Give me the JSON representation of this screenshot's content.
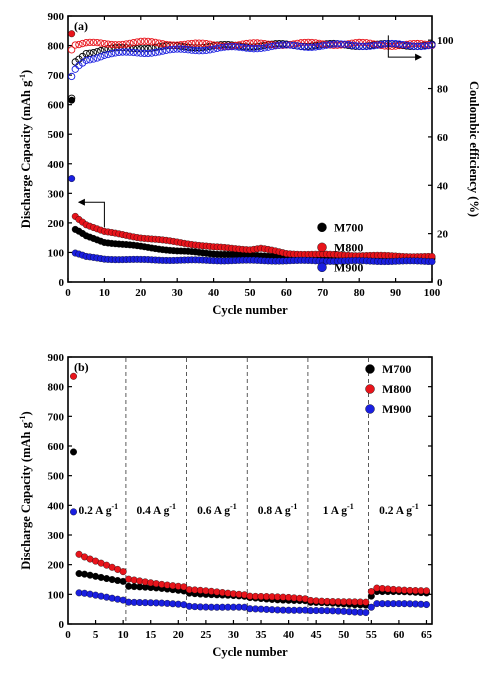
{
  "chart_data": [
    {
      "panel": "(a)",
      "type": "scatter",
      "xlabel": "Cycle number",
      "ylabel": "Discharge Capacity (mAh g",
      "ylabel_sup": "-1",
      "ylabel_end": ")",
      "y2label": "Coulombic efficiency (%)",
      "xlim": [
        0,
        100
      ],
      "ylim": [
        0,
        900
      ],
      "y2lim": [
        0,
        110
      ],
      "xticks": [
        "0",
        "10",
        "20",
        "30",
        "40",
        "50",
        "60",
        "70",
        "80",
        "90",
        "100"
      ],
      "yticks": [
        "0",
        "100",
        "200",
        "300",
        "400",
        "500",
        "600",
        "700",
        "800",
        "900"
      ],
      "y2ticks": [
        "0",
        "20",
        "40",
        "60",
        "80",
        "100"
      ],
      "legend": {
        "placement": "middle-right",
        "entries": [
          "M700",
          "M800",
          "M900"
        ]
      },
      "colors": {
        "M700": "#000000",
        "M800": "#e8141b",
        "M900": "#1a1fe0"
      },
      "arrows": [
        {
          "from": [
            10,
            185
          ],
          "to": [
            3,
            270
          ],
          "points_to_axis": "left"
        },
        {
          "from": [
            88,
            102
          ],
          "to": [
            97,
            93
          ],
          "points_to_axis": "right"
        }
      ],
      "series": [
        {
          "name": "M700",
          "axis": "capacity",
          "first_cycle": 615,
          "anchors": [
            [
              1,
              615
            ],
            [
              2,
              178
            ],
            [
              5,
              155
            ],
            [
              10,
              135
            ],
            [
              20,
              120
            ],
            [
              30,
              105
            ],
            [
              40,
              96
            ],
            [
              50,
              90
            ],
            [
              60,
              87
            ],
            [
              70,
              85
            ],
            [
              80,
              83
            ],
            [
              90,
              82
            ],
            [
              100,
              81
            ]
          ]
        },
        {
          "name": "M800",
          "axis": "capacity",
          "first_cycle": 840,
          "anchors": [
            [
              1,
              840
            ],
            [
              2,
              222
            ],
            [
              5,
              195
            ],
            [
              10,
              170
            ],
            [
              20,
              150
            ],
            [
              30,
              135
            ],
            [
              40,
              118
            ],
            [
              50,
              110
            ],
            [
              53,
              114
            ],
            [
              60,
              96
            ],
            [
              70,
              93
            ],
            [
              80,
              90
            ],
            [
              90,
              88
            ],
            [
              100,
              85
            ]
          ]
        },
        {
          "name": "M900",
          "axis": "capacity",
          "first_cycle": 350,
          "anchors": [
            [
              1,
              350
            ],
            [
              2,
              98
            ],
            [
              5,
              85
            ],
            [
              10,
              78
            ],
            [
              20,
              75
            ],
            [
              40,
              73
            ],
            [
              60,
              72
            ],
            [
              80,
              71
            ],
            [
              100,
              70
            ]
          ]
        },
        {
          "name": "M700",
          "axis": "efficiency",
          "anchors": [
            [
              1,
              76
            ],
            [
              2,
              91
            ],
            [
              5,
              95
            ],
            [
              10,
              96
            ],
            [
              20,
              97
            ],
            [
              40,
              97.5
            ],
            [
              60,
              98
            ],
            [
              80,
              98
            ],
            [
              100,
              98
            ]
          ]
        },
        {
          "name": "M800",
          "axis": "efficiency",
          "anchors": [
            [
              1,
              96
            ],
            [
              2,
              98
            ],
            [
              5,
              98.5
            ],
            [
              10,
              98.5
            ],
            [
              20,
              99
            ],
            [
              40,
              98
            ],
            [
              60,
              98.5
            ],
            [
              80,
              98.5
            ],
            [
              90,
              98
            ],
            [
              100,
              98
            ]
          ]
        },
        {
          "name": "M900",
          "axis": "efficiency",
          "anchors": [
            [
              1,
              85
            ],
            [
              2,
              88
            ],
            [
              5,
              92
            ],
            [
              10,
              94
            ],
            [
              20,
              95
            ],
            [
              40,
              96.5
            ],
            [
              60,
              97.5
            ],
            [
              80,
              98
            ],
            [
              100,
              98
            ]
          ]
        }
      ]
    },
    {
      "panel": "(b)",
      "type": "scatter",
      "xlabel": "Cycle number",
      "ylabel": "Discharge Capacity (mAh g",
      "ylabel_sup": "-1",
      "ylabel_end": ")",
      "xlim": [
        0,
        66
      ],
      "ylim": [
        0,
        900
      ],
      "xticks": [
        "0",
        "5",
        "10",
        "15",
        "20",
        "25",
        "30",
        "35",
        "40",
        "45",
        "50",
        "55",
        "60",
        "65"
      ],
      "yticks": [
        "0",
        "100",
        "200",
        "300",
        "400",
        "500",
        "600",
        "700",
        "800",
        "900"
      ],
      "legend": {
        "placement": "top-right",
        "entries": [
          "M700",
          "M800",
          "M900"
        ]
      },
      "colors": {
        "M700": "#000000",
        "M800": "#e8141b",
        "M900": "#1a1fe0"
      },
      "dividers": [
        10.5,
        21.5,
        32.5,
        43.5,
        54.5
      ],
      "rate_labels": [
        {
          "base": "0.2 A g",
          "sup": "-1",
          "x": 5.5
        },
        {
          "base": "0.4 A g",
          "sup": "-1",
          "x": 16
        },
        {
          "base": "0.6 A g",
          "sup": "-1",
          "x": 27
        },
        {
          "base": "0.8 A g",
          "sup": "-1",
          "x": 38
        },
        {
          "base": "1 A g",
          "sup": "-1",
          "x": 49
        },
        {
          "base": "0.2 A g",
          "sup": "-1",
          "x": 60
        }
      ],
      "series": [
        {
          "name": "M700",
          "anchors": [
            [
              1,
              580
            ],
            [
              2,
              170
            ],
            [
              10,
              145
            ],
            [
              11,
              128
            ],
            [
              21,
              112
            ],
            [
              22,
              105
            ],
            [
              32,
              92
            ],
            [
              33,
              88
            ],
            [
              43,
              78
            ],
            [
              44,
              72
            ],
            [
              54,
              65
            ],
            [
              55,
              95
            ],
            [
              56,
              110
            ],
            [
              65,
              105
            ]
          ]
        },
        {
          "name": "M800",
          "anchors": [
            [
              1,
              835
            ],
            [
              2,
              235
            ],
            [
              10,
              175
            ],
            [
              11,
              150
            ],
            [
              21,
              125
            ],
            [
              22,
              115
            ],
            [
              32,
              100
            ],
            [
              33,
              95
            ],
            [
              43,
              85
            ],
            [
              44,
              80
            ],
            [
              54,
              72
            ],
            [
              55,
              108
            ],
            [
              56,
              120
            ],
            [
              65,
              112
            ]
          ]
        },
        {
          "name": "M900",
          "anchors": [
            [
              1,
              378
            ],
            [
              2,
              105
            ],
            [
              10,
              82
            ],
            [
              11,
              75
            ],
            [
              21,
              65
            ],
            [
              22,
              60
            ],
            [
              32,
              55
            ],
            [
              33,
              50
            ],
            [
              43,
              47
            ],
            [
              44,
              45
            ],
            [
              54,
              40
            ],
            [
              55,
              58
            ],
            [
              56,
              70
            ],
            [
              65,
              65
            ]
          ]
        }
      ]
    }
  ]
}
